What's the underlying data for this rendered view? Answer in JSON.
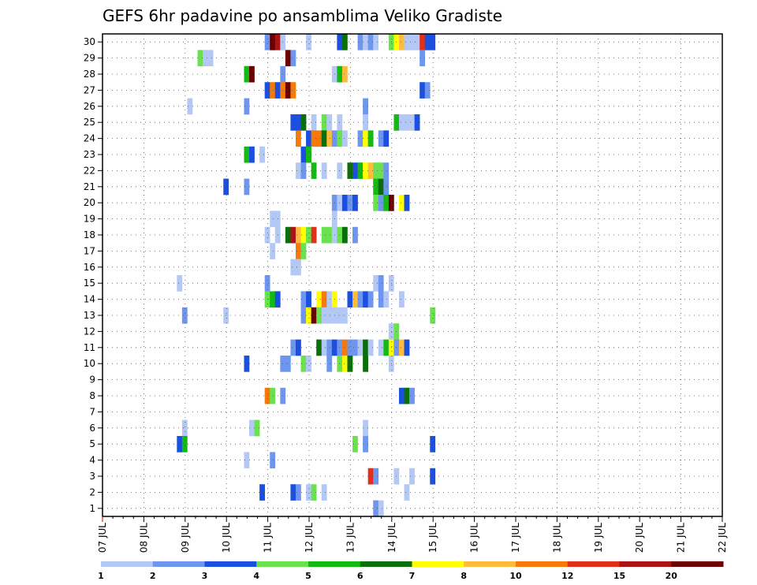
{
  "chart_data": {
    "type": "heatmap",
    "title": "GEFS 6hr padavine po ansamblima Veliko Gradiste",
    "xlabel": "",
    "ylabel": "",
    "x_ticks": [
      "07 JUL",
      "08 JUL",
      "09 JUL",
      "10 JUL",
      "11 JUL",
      "12 JUL",
      "13 JUL",
      "14 JUL",
      "15 JUL",
      "16 JUL",
      "17 JUL",
      "18 JUL",
      "19 JUL",
      "20 JUL",
      "21 JUL",
      "22 JUL"
    ],
    "y_ticks": [
      "1",
      "2",
      "3",
      "4",
      "5",
      "6",
      "7",
      "8",
      "9",
      "10",
      "11",
      "12",
      "13",
      "14",
      "15",
      "16",
      "17",
      "18",
      "19",
      "20",
      "21",
      "22",
      "23",
      "24",
      "25",
      "26",
      "27",
      "28",
      "29",
      "30"
    ],
    "xlim": [
      0,
      60
    ],
    "ylim": [
      0.5,
      30.5
    ],
    "grid": true,
    "legend": {
      "placement": "bottom",
      "labels": [
        "1",
        "2",
        "3",
        "4",
        "5",
        "6",
        "7",
        "8",
        "10",
        "12",
        "15",
        "20"
      ],
      "colors": [
        "#b4c8f5",
        "#6e96ee",
        "#1a4fe0",
        "#6ae24e",
        "#12ba12",
        "#0a6e0a",
        "#ffff00",
        "#ffbb3a",
        "#f57a0a",
        "#e0301a",
        "#aa1414",
        "#6a0000"
      ]
    },
    "points": [
      [
        15.7,
        30,
        2
      ],
      [
        16.2,
        30,
        12
      ],
      [
        16.7,
        30,
        11
      ],
      [
        17.2,
        30,
        1
      ],
      [
        19.7,
        30,
        1
      ],
      [
        22.7,
        30,
        3
      ],
      [
        23.2,
        30,
        6
      ],
      [
        24.7,
        30,
        2
      ],
      [
        25.2,
        30,
        1
      ],
      [
        25.7,
        30,
        2
      ],
      [
        26.2,
        30,
        1
      ],
      [
        27.7,
        30,
        4
      ],
      [
        28.2,
        30,
        7
      ],
      [
        28.7,
        30,
        8
      ],
      [
        29.2,
        30,
        1
      ],
      [
        29.7,
        30,
        1
      ],
      [
        30.2,
        30,
        1
      ],
      [
        30.7,
        30,
        10
      ],
      [
        31.2,
        30,
        3
      ],
      [
        31.7,
        30,
        3
      ],
      [
        9.2,
        29,
        4
      ],
      [
        9.7,
        29,
        1
      ],
      [
        10.2,
        29,
        1
      ],
      [
        17.7,
        29,
        12
      ],
      [
        18.2,
        29,
        2
      ],
      [
        30.7,
        29,
        2
      ],
      [
        13.7,
        28,
        5
      ],
      [
        14.2,
        28,
        12
      ],
      [
        17.2,
        28,
        2
      ],
      [
        22.2,
        28,
        1
      ],
      [
        22.7,
        28,
        5
      ],
      [
        23.2,
        28,
        8
      ],
      [
        15.7,
        27,
        3
      ],
      [
        16.2,
        27,
        9
      ],
      [
        16.7,
        27,
        3
      ],
      [
        17.2,
        27,
        9
      ],
      [
        17.7,
        27,
        12
      ],
      [
        18.2,
        27,
        9
      ],
      [
        30.7,
        27,
        3
      ],
      [
        31.2,
        27,
        2
      ],
      [
        8.2,
        26,
        1
      ],
      [
        13.7,
        26,
        2
      ],
      [
        25.2,
        26,
        2
      ],
      [
        18.2,
        25,
        3
      ],
      [
        18.7,
        25,
        3
      ],
      [
        19.2,
        25,
        6
      ],
      [
        20.2,
        25,
        1
      ],
      [
        21.2,
        25,
        4
      ],
      [
        21.7,
        25,
        1
      ],
      [
        22.7,
        25,
        1
      ],
      [
        25.2,
        25,
        1
      ],
      [
        28.2,
        25,
        5
      ],
      [
        28.7,
        25,
        1
      ],
      [
        29.2,
        25,
        1
      ],
      [
        29.7,
        25,
        1
      ],
      [
        30.2,
        25,
        3
      ],
      [
        18.7,
        24,
        9
      ],
      [
        19.7,
        24,
        3
      ],
      [
        20.2,
        24,
        9
      ],
      [
        20.7,
        24,
        9
      ],
      [
        21.2,
        24,
        6
      ],
      [
        21.7,
        24,
        8
      ],
      [
        22.2,
        24,
        2
      ],
      [
        22.7,
        24,
        4
      ],
      [
        23.2,
        24,
        1
      ],
      [
        24.7,
        24,
        2
      ],
      [
        25.2,
        24,
        7
      ],
      [
        25.7,
        24,
        5
      ],
      [
        26.7,
        24,
        2
      ],
      [
        27.2,
        24,
        3
      ],
      [
        19.2,
        23,
        3
      ],
      [
        19.7,
        23,
        5
      ],
      [
        13.7,
        23,
        5
      ],
      [
        14.2,
        23,
        3
      ],
      [
        15.2,
        23,
        1
      ],
      [
        18.7,
        22,
        1
      ],
      [
        19.2,
        22,
        2
      ],
      [
        20.2,
        22,
        5
      ],
      [
        21.2,
        22,
        1
      ],
      [
        22.7,
        22,
        1
      ],
      [
        23.7,
        22,
        6
      ],
      [
        24.2,
        22,
        3
      ],
      [
        24.7,
        22,
        5
      ],
      [
        25.2,
        22,
        7
      ],
      [
        25.7,
        22,
        8
      ],
      [
        26.2,
        22,
        4
      ],
      [
        26.7,
        22,
        4
      ],
      [
        27.2,
        22,
        2
      ],
      [
        11.7,
        21,
        3
      ],
      [
        13.7,
        21,
        2
      ],
      [
        26.2,
        21,
        5
      ],
      [
        26.7,
        21,
        6
      ],
      [
        27.2,
        21,
        2
      ],
      [
        22.2,
        20,
        2
      ],
      [
        22.7,
        20,
        1
      ],
      [
        23.2,
        20,
        3
      ],
      [
        23.7,
        20,
        2
      ],
      [
        24.2,
        20,
        3
      ],
      [
        26.2,
        20,
        4
      ],
      [
        26.7,
        20,
        2
      ],
      [
        27.2,
        20,
        5
      ],
      [
        27.7,
        20,
        12
      ],
      [
        28.7,
        20,
        7
      ],
      [
        29.2,
        20,
        3
      ],
      [
        16.2,
        19,
        1
      ],
      [
        16.7,
        19,
        1
      ],
      [
        22.2,
        19,
        1
      ],
      [
        15.7,
        18,
        1
      ],
      [
        16.7,
        18,
        1
      ],
      [
        17.7,
        18,
        6
      ],
      [
        18.2,
        18,
        11
      ],
      [
        18.7,
        18,
        8
      ],
      [
        19.2,
        18,
        7
      ],
      [
        19.7,
        18,
        4
      ],
      [
        20.2,
        18,
        10
      ],
      [
        21.2,
        18,
        4
      ],
      [
        21.7,
        18,
        4
      ],
      [
        22.2,
        18,
        1
      ],
      [
        22.7,
        18,
        4
      ],
      [
        23.2,
        18,
        6
      ],
      [
        24.2,
        18,
        2
      ],
      [
        16.2,
        17,
        1
      ],
      [
        18.7,
        17,
        9
      ],
      [
        19.2,
        17,
        4
      ],
      [
        18.7,
        16,
        1
      ],
      [
        18.2,
        16,
        1
      ],
      [
        7.2,
        15,
        1
      ],
      [
        15.7,
        15,
        2
      ],
      [
        26.2,
        15,
        1
      ],
      [
        26.7,
        15,
        2
      ],
      [
        27.7,
        15,
        1
      ],
      [
        15.7,
        14,
        4
      ],
      [
        16.2,
        14,
        5
      ],
      [
        16.7,
        14,
        3
      ],
      [
        19.2,
        14,
        2
      ],
      [
        19.7,
        14,
        3
      ],
      [
        20.7,
        14,
        7
      ],
      [
        21.2,
        14,
        9
      ],
      [
        21.7,
        14,
        1
      ],
      [
        22.2,
        14,
        7
      ],
      [
        23.7,
        14,
        3
      ],
      [
        24.2,
        14,
        8
      ],
      [
        24.7,
        14,
        2
      ],
      [
        25.2,
        14,
        3
      ],
      [
        25.7,
        14,
        2
      ],
      [
        26.7,
        14,
        2
      ],
      [
        27.2,
        14,
        1
      ],
      [
        28.7,
        14,
        1
      ],
      [
        7.7,
        13,
        2
      ],
      [
        11.7,
        13,
        1
      ],
      [
        19.2,
        13,
        2
      ],
      [
        19.7,
        13,
        7
      ],
      [
        20.2,
        13,
        12
      ],
      [
        20.7,
        13,
        4
      ],
      [
        21.2,
        13,
        1
      ],
      [
        21.7,
        13,
        1
      ],
      [
        22.2,
        13,
        1
      ],
      [
        22.7,
        13,
        1
      ],
      [
        23.2,
        13,
        1
      ],
      [
        31.7,
        13,
        4
      ],
      [
        27.7,
        12,
        1
      ],
      [
        28.2,
        12,
        4
      ],
      [
        18.2,
        11,
        2
      ],
      [
        18.7,
        11,
        3
      ],
      [
        20.7,
        11,
        6
      ],
      [
        21.2,
        11,
        1
      ],
      [
        21.7,
        11,
        2
      ],
      [
        22.2,
        11,
        3
      ],
      [
        22.7,
        11,
        2
      ],
      [
        23.2,
        11,
        9
      ],
      [
        23.7,
        11,
        2
      ],
      [
        24.2,
        11,
        2
      ],
      [
        24.7,
        11,
        1
      ],
      [
        25.2,
        11,
        6
      ],
      [
        25.7,
        11,
        1
      ],
      [
        26.7,
        11,
        1
      ],
      [
        27.2,
        11,
        5
      ],
      [
        27.7,
        11,
        7
      ],
      [
        28.2,
        11,
        2
      ],
      [
        28.7,
        11,
        8
      ],
      [
        29.2,
        11,
        3
      ],
      [
        13.7,
        10,
        3
      ],
      [
        17.2,
        10,
        2
      ],
      [
        17.7,
        10,
        2
      ],
      [
        19.2,
        10,
        4
      ],
      [
        19.7,
        10,
        1
      ],
      [
        21.7,
        10,
        2
      ],
      [
        22.7,
        10,
        4
      ],
      [
        23.2,
        10,
        7
      ],
      [
        23.7,
        10,
        6
      ],
      [
        25.2,
        10,
        6
      ],
      [
        27.7,
        10,
        1
      ],
      [
        15.7,
        8,
        9
      ],
      [
        16.2,
        8,
        4
      ],
      [
        17.2,
        8,
        2
      ],
      [
        28.7,
        8,
        3
      ],
      [
        29.2,
        8,
        6
      ],
      [
        29.7,
        8,
        2
      ],
      [
        7.7,
        6,
        1
      ],
      [
        14.2,
        6,
        1
      ],
      [
        14.7,
        6,
        4
      ],
      [
        25.2,
        6,
        1
      ],
      [
        7.2,
        5,
        3
      ],
      [
        7.7,
        5,
        5
      ],
      [
        24.2,
        5,
        4
      ],
      [
        25.2,
        5,
        2
      ],
      [
        31.7,
        5,
        3
      ],
      [
        13.7,
        4,
        1
      ],
      [
        16.2,
        4,
        2
      ],
      [
        25.7,
        3,
        10
      ],
      [
        26.2,
        3,
        2
      ],
      [
        28.2,
        3,
        1
      ],
      [
        29.7,
        3,
        1
      ],
      [
        31.7,
        3,
        3
      ],
      [
        15.2,
        2,
        3
      ],
      [
        18.2,
        2,
        3
      ],
      [
        18.7,
        2,
        2
      ],
      [
        19.7,
        2,
        1
      ],
      [
        20.2,
        2,
        4
      ],
      [
        21.2,
        2,
        1
      ],
      [
        29.2,
        2,
        1
      ],
      [
        26.2,
        1,
        2
      ],
      [
        26.7,
        1,
        1
      ]
    ]
  }
}
